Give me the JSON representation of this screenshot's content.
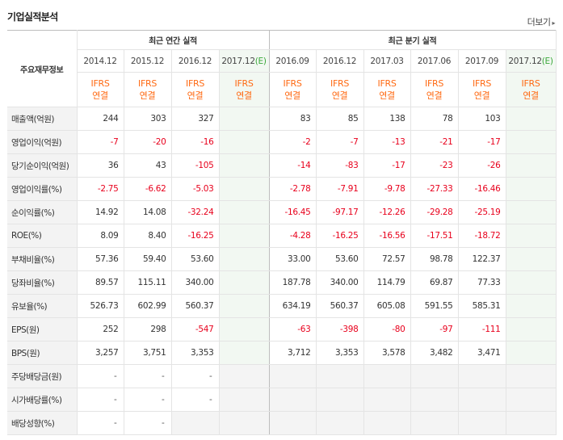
{
  "section": {
    "title": "기업실적분석",
    "more_label": "더보기",
    "more_arrow": "▸"
  },
  "table": {
    "corner_label": "주요재무정보",
    "annual_group_label": "최근 연간 실적",
    "quarter_group_label": "최근 분기 실적",
    "annual_periods": [
      {
        "label": "2014.12",
        "est": ""
      },
      {
        "label": "2015.12",
        "est": ""
      },
      {
        "label": "2016.12",
        "est": ""
      },
      {
        "label": "2017.12",
        "est": "(E)"
      }
    ],
    "quarter_periods": [
      {
        "label": "2016.09",
        "est": ""
      },
      {
        "label": "2016.12",
        "est": ""
      },
      {
        "label": "2017.03",
        "est": ""
      },
      {
        "label": "2017.06",
        "est": ""
      },
      {
        "label": "2017.09",
        "est": ""
      },
      {
        "label": "2017.12",
        "est": "(E)"
      }
    ],
    "basis_line1": "IFRS",
    "basis_line2": "연결",
    "rows": [
      {
        "label": "매출액(억원)",
        "annual": [
          "244",
          "303",
          "327",
          ""
        ],
        "quarter": [
          "83",
          "85",
          "138",
          "78",
          "103",
          ""
        ]
      },
      {
        "label": "영업이익(억원)",
        "annual": [
          "-7",
          "-20",
          "-16",
          ""
        ],
        "quarter": [
          "-2",
          "-7",
          "-13",
          "-21",
          "-17",
          ""
        ]
      },
      {
        "label": "당기순이익(억원)",
        "annual": [
          "36",
          "43",
          "-105",
          ""
        ],
        "quarter": [
          "-14",
          "-83",
          "-17",
          "-23",
          "-26",
          ""
        ]
      },
      {
        "label": "영업이익률(%)",
        "annual": [
          "-2.75",
          "-6.62",
          "-5.03",
          ""
        ],
        "quarter": [
          "-2.78",
          "-7.91",
          "-9.78",
          "-27.33",
          "-16.46",
          ""
        ]
      },
      {
        "label": "순이익률(%)",
        "annual": [
          "14.92",
          "14.08",
          "-32.24",
          ""
        ],
        "quarter": [
          "-16.45",
          "-97.17",
          "-12.26",
          "-29.28",
          "-25.19",
          ""
        ]
      },
      {
        "label": "ROE(%)",
        "annual": [
          "8.09",
          "8.40",
          "-16.25",
          ""
        ],
        "quarter": [
          "-4.28",
          "-16.25",
          "-16.56",
          "-17.51",
          "-18.72",
          ""
        ]
      },
      {
        "label": "부채비율(%)",
        "annual": [
          "57.36",
          "59.40",
          "53.60",
          ""
        ],
        "quarter": [
          "33.00",
          "53.60",
          "72.57",
          "98.78",
          "122.37",
          ""
        ]
      },
      {
        "label": "당좌비율(%)",
        "annual": [
          "89.57",
          "115.11",
          "340.00",
          ""
        ],
        "quarter": [
          "187.78",
          "340.00",
          "114.79",
          "69.87",
          "77.33",
          ""
        ]
      },
      {
        "label": "유보율(%)",
        "annual": [
          "526.73",
          "602.99",
          "560.37",
          ""
        ],
        "quarter": [
          "634.19",
          "560.37",
          "605.08",
          "591.55",
          "585.31",
          ""
        ]
      },
      {
        "label": "EPS(원)",
        "annual": [
          "252",
          "298",
          "-547",
          ""
        ],
        "quarter": [
          "-63",
          "-398",
          "-80",
          "-97",
          "-111",
          ""
        ]
      },
      {
        "label": "BPS(원)",
        "annual": [
          "3,257",
          "3,751",
          "3,353",
          ""
        ],
        "quarter": [
          "3,712",
          "3,353",
          "3,578",
          "3,482",
          "3,471",
          ""
        ]
      },
      {
        "label": "주당배당금(원)",
        "annual": [
          "-",
          "-",
          "-",
          ""
        ],
        "quarter": [
          "",
          "",
          "",
          "",
          "",
          ""
        ]
      },
      {
        "label": "시가배당률(%)",
        "annual": [
          "-",
          "-",
          "-",
          ""
        ],
        "quarter": [
          "",
          "",
          "",
          "",
          "",
          ""
        ]
      },
      {
        "label": "배당성향(%)",
        "annual": [
          "-",
          "-",
          "",
          ""
        ],
        "quarter": [
          "",
          "",
          "",
          "",
          "",
          ""
        ]
      }
    ]
  },
  "colors": {
    "negative": "#e8001c",
    "basis": "#ff6a13",
    "estimate": "#3aa83a"
  }
}
